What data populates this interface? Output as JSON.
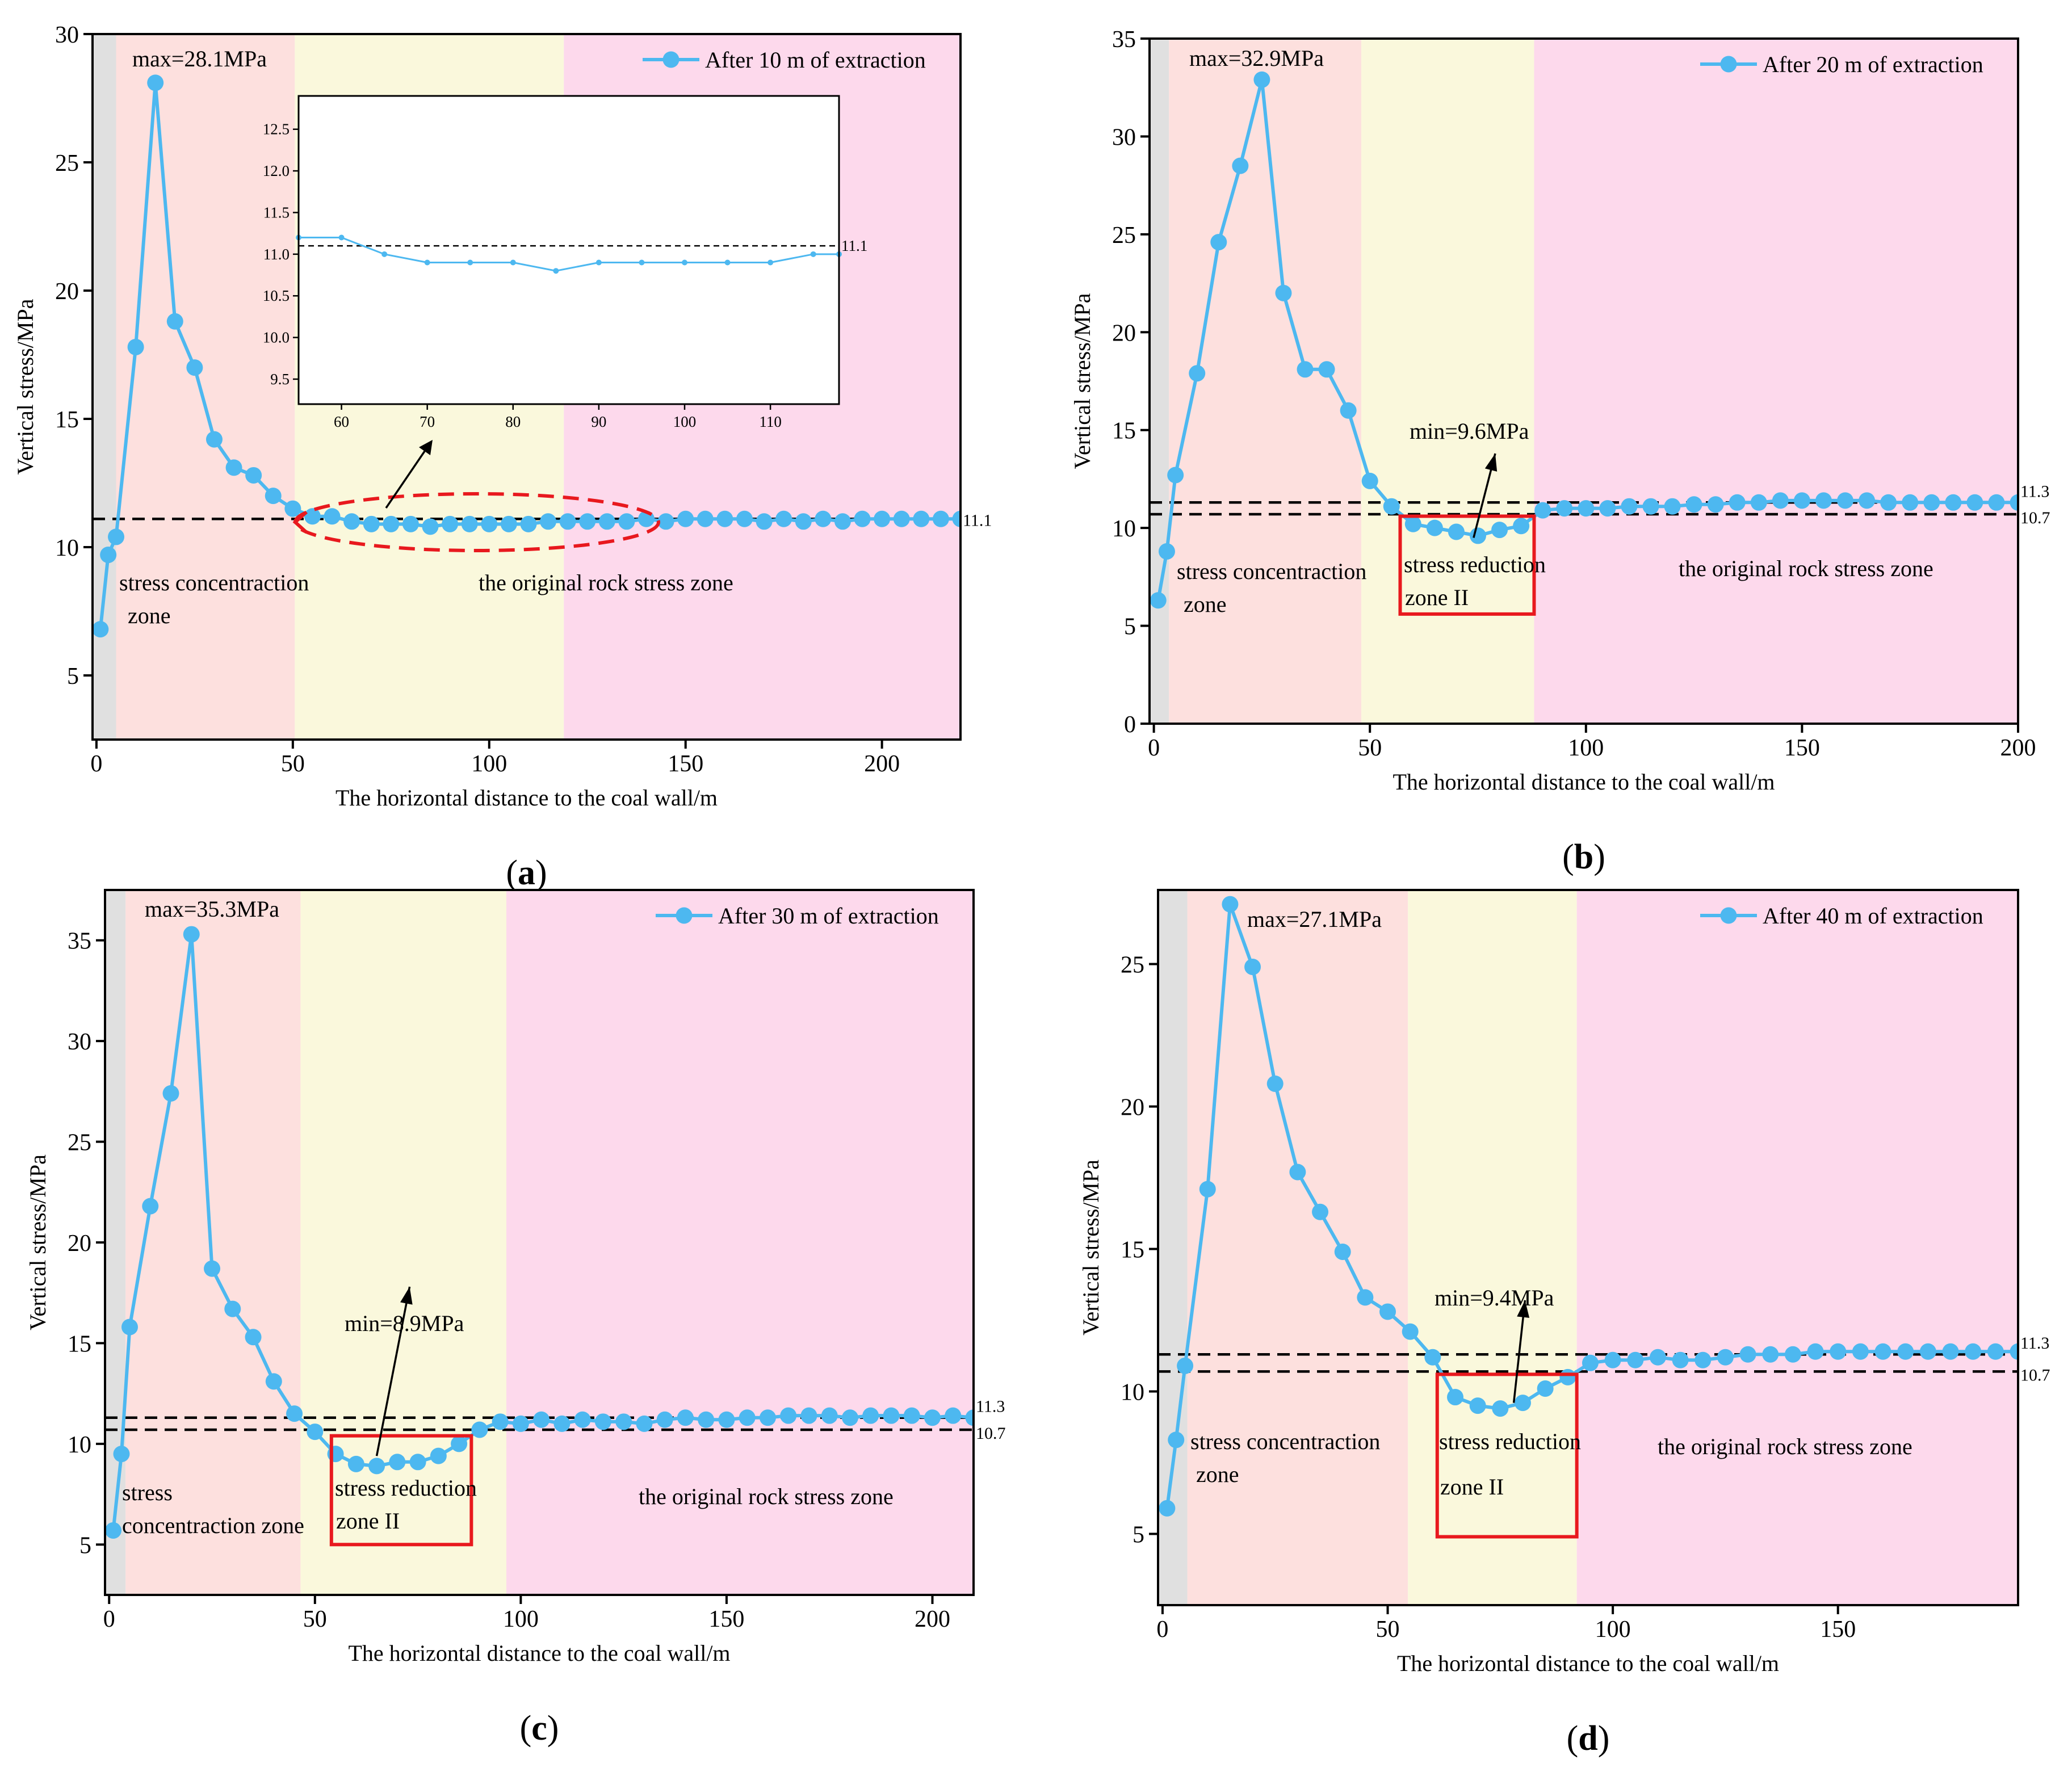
{
  "figure": {
    "colors": {
      "series": "#4db8f0",
      "zone_gray": "#e0e0e0",
      "zone_concentration": "#fde0de",
      "zone_reduction": "#faf8dc",
      "zone_original": "#fdd9ec",
      "box_red": "#e8191e",
      "ellipse_red": "#e8191e",
      "ref_line": "#000000"
    }
  },
  "chart_data": [
    {
      "id": "a",
      "type": "line",
      "panel_label": "(a)",
      "panel_letter": "a",
      "xlabel": "The horizontal distance to the coal wall/m",
      "ylabel": "Vertical stress/MPa",
      "xlim": [
        -1,
        220
      ],
      "ylim": [
        2.5,
        30
      ],
      "xticks": [
        0,
        50,
        100,
        150,
        200
      ],
      "yticks": [
        5,
        10,
        15,
        20,
        25,
        30
      ],
      "legend": "After 10 m of extraction",
      "zones": [
        {
          "from": -1,
          "to": 5,
          "kind": "gray"
        },
        {
          "from": 5,
          "to": 50.5,
          "kind": "concentration"
        },
        {
          "from": 50.5,
          "to": 119,
          "kind": "reduction"
        },
        {
          "from": 119,
          "to": 220,
          "kind": "original"
        }
      ],
      "ref_lines": [
        {
          "y": 11.1,
          "label": "11.1"
        }
      ],
      "annotations": {
        "max": "max=28.1MPa",
        "zone_concentration": [
          "stress concentraction",
          "zone"
        ],
        "zone_original": "the original rock stress zone"
      },
      "series": [
        {
          "name": "After 10 m of extraction",
          "x": [
            1,
            3,
            5,
            10,
            15,
            20,
            25,
            30,
            35,
            40,
            45,
            50,
            55,
            60,
            65,
            70,
            75,
            80,
            85,
            90,
            95,
            100,
            105,
            110,
            115,
            120,
            125,
            130,
            135,
            140,
            145,
            150,
            155,
            160,
            165,
            170,
            175,
            180,
            185,
            190,
            195,
            200,
            205,
            210,
            215,
            220
          ],
          "y": [
            6.8,
            9.7,
            10.4,
            17.8,
            28.1,
            18.8,
            17.0,
            14.2,
            13.1,
            12.8,
            12.0,
            11.5,
            11.2,
            11.2,
            11.0,
            10.9,
            10.9,
            10.9,
            10.8,
            10.9,
            10.9,
            10.9,
            10.9,
            10.9,
            11.0,
            11.0,
            11.0,
            11.0,
            11.0,
            11.1,
            11.0,
            11.1,
            11.1,
            11.1,
            11.1,
            11.0,
            11.1,
            11.0,
            11.1,
            11.0,
            11.1,
            11.1,
            11.1,
            11.1,
            11.1,
            11.1
          ]
        }
      ],
      "inset": {
        "xlim": [
          55,
          118
        ],
        "ylim": [
          9.2,
          12.9
        ],
        "xticks": [
          60,
          70,
          80,
          90,
          100,
          110
        ],
        "yticks": [
          9.5,
          10.0,
          10.5,
          11.0,
          11.5,
          12.0,
          12.5
        ],
        "ref_y": 11.1,
        "ref_label": "11.1",
        "x": [
          55,
          60,
          65,
          70,
          75,
          80,
          85,
          90,
          95,
          100,
          105,
          110,
          115,
          118
        ],
        "y": [
          11.2,
          11.2,
          11.0,
          10.9,
          10.9,
          10.9,
          10.8,
          10.9,
          10.9,
          10.9,
          10.9,
          10.9,
          11.0,
          11.0
        ]
      }
    },
    {
      "id": "b",
      "type": "line",
      "panel_label": "(b)",
      "panel_letter": "b",
      "xlabel": "The horizontal distance to the coal wall/m",
      "ylabel": "Vertical stress/MPa",
      "xlim": [
        -1,
        200
      ],
      "ylim": [
        0,
        35
      ],
      "xticks": [
        0,
        50,
        100,
        150,
        200
      ],
      "yticks": [
        0,
        5,
        10,
        15,
        20,
        25,
        30,
        35
      ],
      "legend": "After 20 m of extraction",
      "zones": [
        {
          "from": -1,
          "to": 3.5,
          "kind": "gray"
        },
        {
          "from": 3.5,
          "to": 48,
          "kind": "concentration"
        },
        {
          "from": 48,
          "to": 88,
          "kind": "reduction"
        },
        {
          "from": 88,
          "to": 200,
          "kind": "original"
        }
      ],
      "ref_lines": [
        {
          "y": 11.3,
          "label": "11.3"
        },
        {
          "y": 10.7,
          "label": "10.7"
        }
      ],
      "box": {
        "x0": 57,
        "x1": 88,
        "y0": 5.6,
        "y1": 10.6
      },
      "arrow": {
        "x0": 74,
        "y0": 9.5,
        "x1": 79,
        "y1": 13.8
      },
      "annotations": {
        "max": "max=32.9MPa",
        "min": "min=9.6MPa",
        "zone_concentration": [
          "stress concentraction",
          "zone"
        ],
        "zone_reduction": [
          "stress reduction",
          "zone II"
        ],
        "zone_original": "the original rock stress zone"
      },
      "series": [
        {
          "name": "After 20 m of extraction",
          "x": [
            1,
            3,
            5,
            10,
            15,
            20,
            25,
            30,
            35,
            40,
            45,
            50,
            55,
            60,
            65,
            70,
            75,
            80,
            85,
            90,
            95,
            100,
            105,
            110,
            115,
            120,
            125,
            130,
            135,
            140,
            145,
            150,
            155,
            160,
            165,
            170,
            175,
            180,
            185,
            190,
            195,
            200
          ],
          "y": [
            6.3,
            8.8,
            12.7,
            17.9,
            24.6,
            28.5,
            32.9,
            22.0,
            18.1,
            18.1,
            16.0,
            12.4,
            11.1,
            10.2,
            10.0,
            9.8,
            9.6,
            9.9,
            10.1,
            10.9,
            11.0,
            11.0,
            11.0,
            11.1,
            11.1,
            11.1,
            11.2,
            11.2,
            11.3,
            11.3,
            11.4,
            11.4,
            11.4,
            11.4,
            11.4,
            11.3,
            11.3,
            11.3,
            11.3,
            11.3,
            11.3,
            11.3
          ]
        }
      ]
    },
    {
      "id": "c",
      "type": "line",
      "panel_label": "(c)",
      "panel_letter": "c",
      "xlabel": "The horizontal distance to the coal wall/m",
      "ylabel": "Vertical stress/MPa",
      "xlim": [
        -1,
        210
      ],
      "ylim": [
        2.5,
        37.5
      ],
      "xticks": [
        0,
        50,
        100,
        150,
        200
      ],
      "yticks": [
        5,
        10,
        15,
        20,
        25,
        30,
        35
      ],
      "legend": "After 30 m of extraction",
      "zones": [
        {
          "from": -1,
          "to": 4,
          "kind": "gray"
        },
        {
          "from": 4,
          "to": 46.5,
          "kind": "concentration"
        },
        {
          "from": 46.5,
          "to": 96.5,
          "kind": "reduction"
        },
        {
          "from": 96.5,
          "to": 210,
          "kind": "original"
        }
      ],
      "ref_lines": [
        {
          "y": 11.3,
          "label": "11.3"
        },
        {
          "y": 10.7,
          "label": "10.7"
        }
      ],
      "box": {
        "x0": 54,
        "x1": 88,
        "y0": 5.0,
        "y1": 10.4
      },
      "arrow": {
        "x0": 65,
        "y0": 9.4,
        "x1": 73,
        "y1": 17.8
      },
      "annotations": {
        "max": "max=35.3MPa",
        "min": "min=8.9MPa",
        "zone_concentration": [
          "stress",
          "concentraction zone"
        ],
        "zone_reduction": [
          "stress reduction",
          "zone II"
        ],
        "zone_original": "the original rock stress zone"
      },
      "series": [
        {
          "name": "After 30 m of extraction",
          "x": [
            1,
            3,
            5,
            10,
            15,
            20,
            25,
            30,
            35,
            40,
            45,
            50,
            55,
            60,
            65,
            70,
            75,
            80,
            85,
            90,
            95,
            100,
            105,
            110,
            115,
            120,
            125,
            130,
            135,
            140,
            145,
            150,
            155,
            160,
            165,
            170,
            175,
            180,
            185,
            190,
            195,
            200,
            205,
            210
          ],
          "y": [
            5.7,
            9.5,
            15.8,
            21.8,
            27.4,
            35.3,
            18.7,
            16.7,
            15.3,
            13.1,
            11.5,
            10.6,
            9.5,
            9.0,
            8.9,
            9.1,
            9.1,
            9.4,
            10.0,
            10.7,
            11.1,
            11.0,
            11.2,
            11.0,
            11.2,
            11.1,
            11.1,
            11.0,
            11.2,
            11.3,
            11.2,
            11.2,
            11.3,
            11.3,
            11.4,
            11.4,
            11.4,
            11.3,
            11.4,
            11.4,
            11.4,
            11.3,
            11.4,
            11.3
          ]
        }
      ]
    },
    {
      "id": "d",
      "type": "line",
      "panel_label": "(d)",
      "panel_letter": "d",
      "xlabel": "The horizontal distance to the coal wall/m",
      "ylabel": "Vertical stress/MPa",
      "xlim": [
        -1,
        190
      ],
      "ylim": [
        2.5,
        27.6
      ],
      "xticks": [
        0,
        50,
        100,
        150
      ],
      "yticks": [
        5,
        10,
        15,
        20,
        25
      ],
      "legend": "After 40 m of extraction",
      "zones": [
        {
          "from": -1,
          "to": 5.5,
          "kind": "gray"
        },
        {
          "from": 5.5,
          "to": 54.5,
          "kind": "concentration"
        },
        {
          "from": 54.5,
          "to": 92,
          "kind": "reduction"
        },
        {
          "from": 92,
          "to": 190,
          "kind": "original"
        }
      ],
      "ref_lines": [
        {
          "y": 11.3,
          "label": "11.3"
        },
        {
          "y": 10.7,
          "label": "10.7"
        }
      ],
      "box": {
        "x0": 61,
        "x1": 92,
        "y0": 4.9,
        "y1": 10.6
      },
      "arrow": {
        "x0": 78,
        "y0": 9.6,
        "x1": 80.5,
        "y1": 13.2
      },
      "annotations": {
        "max": "max=27.1MPa",
        "min": "min=9.4MPa",
        "zone_concentration": [
          "stress concentraction",
          "zone"
        ],
        "zone_reduction": [
          "stress reduction",
          "zone II"
        ],
        "zone_original": "the original rock stress zone"
      },
      "series": [
        {
          "name": "After 40 m of extraction",
          "x": [
            1,
            3,
            5,
            10,
            15,
            20,
            25,
            30,
            35,
            40,
            45,
            50,
            55,
            60,
            65,
            70,
            75,
            80,
            85,
            90,
            95,
            100,
            105,
            110,
            115,
            120,
            125,
            130,
            135,
            140,
            145,
            150,
            155,
            160,
            165,
            170,
            175,
            180,
            185,
            190
          ],
          "y": [
            5.9,
            8.3,
            10.9,
            17.1,
            27.1,
            24.9,
            20.8,
            17.7,
            16.3,
            14.9,
            13.3,
            12.8,
            12.1,
            11.2,
            9.8,
            9.5,
            9.4,
            9.6,
            10.1,
            10.5,
            11.0,
            11.1,
            11.1,
            11.2,
            11.1,
            11.1,
            11.2,
            11.3,
            11.3,
            11.3,
            11.4,
            11.4,
            11.4,
            11.4,
            11.4,
            11.4,
            11.4,
            11.4,
            11.4,
            11.4
          ]
        }
      ]
    }
  ]
}
